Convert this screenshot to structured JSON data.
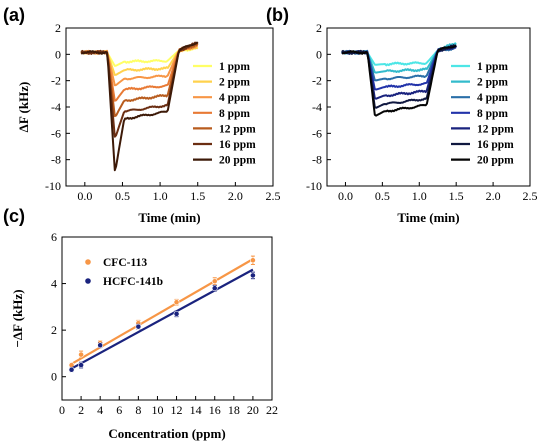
{
  "chart_data": [
    {
      "panel": "(a)",
      "type": "line",
      "xlabel": "Time (min)",
      "ylabel": "ΔF (kHz)",
      "xlim": [
        -0.25,
        2.5
      ],
      "ylim": [
        -10,
        2
      ],
      "xticks": [
        "0.0",
        "0.5",
        "1.0",
        "1.5",
        "2.0",
        "2.5"
      ],
      "yticks": [
        "2",
        "0",
        "-2",
        "-4",
        "-6",
        "-8",
        "-10"
      ],
      "legend_position": "right",
      "series": [
        {
          "name": "1 ppm",
          "color": "#ffff66",
          "drop": -0.6,
          "spike": -0.9
        },
        {
          "name": "2 ppm",
          "color": "#ffd24d",
          "drop": -1.3,
          "spike": -1.6
        },
        {
          "name": "4 ppm",
          "color": "#f79646",
          "drop": -2.0,
          "spike": -2.4
        },
        {
          "name": "8 ppm",
          "color": "#e87a35",
          "drop": -2.9,
          "spike": -3.6
        },
        {
          "name": "12 ppm",
          "color": "#b85c1e",
          "drop": -3.8,
          "spike": -4.8
        },
        {
          "name": "16 ppm",
          "color": "#6b2e12",
          "drop": -4.7,
          "spike": -6.4
        },
        {
          "name": "20 ppm",
          "color": "#3d1a08",
          "drop": -5.3,
          "spike": -9.0
        }
      ]
    },
    {
      "panel": "(b)",
      "type": "line",
      "xlabel": "Time (min)",
      "ylabel": "",
      "xlim": [
        -0.25,
        2.5
      ],
      "ylim": [
        -10,
        2
      ],
      "xticks": [
        "0.0",
        "0.5",
        "1.0",
        "1.5",
        "2.0",
        "2.5"
      ],
      "yticks": [
        "2",
        "0",
        "-2",
        "-4",
        "-6",
        "-8",
        "-10"
      ],
      "legend_position": "right",
      "series": [
        {
          "name": "1 ppm",
          "color": "#4de6e6",
          "drop": -0.8
        },
        {
          "name": "2 ppm",
          "color": "#33bbcc",
          "drop": -1.4
        },
        {
          "name": "4 ppm",
          "color": "#2a6fa8",
          "drop": -2.0
        },
        {
          "name": "8 ppm",
          "color": "#2233aa",
          "drop": -2.7
        },
        {
          "name": "12 ppm",
          "color": "#1a237e",
          "drop": -3.4
        },
        {
          "name": "16 ppm",
          "color": "#101840",
          "drop": -4.1
        },
        {
          "name": "20 ppm",
          "color": "#050505",
          "drop": -4.7
        }
      ]
    },
    {
      "panel": "(c)",
      "type": "scatter",
      "xlabel": "Concentration (ppm)",
      "ylabel": "−ΔF (kHz)",
      "xlim": [
        0,
        22
      ],
      "ylim": [
        -1,
        6
      ],
      "xticks": [
        "0",
        "2",
        "4",
        "6",
        "8",
        "10",
        "12",
        "14",
        "16",
        "18",
        "20",
        "22"
      ],
      "yticks": [
        "6",
        "4",
        "2",
        "0"
      ],
      "legend_position": "top-left",
      "series": [
        {
          "name": "CFC-113",
          "color": "#f79646",
          "x": [
            1,
            2,
            4,
            8,
            12,
            16,
            20
          ],
          "y": [
            0.5,
            0.95,
            1.45,
            2.3,
            3.2,
            4.1,
            5.0
          ],
          "err": [
            0.08,
            0.15,
            0.1,
            0.12,
            0.12,
            0.15,
            0.18
          ],
          "fit": [
            [
              1,
              0.55
            ],
            [
              20,
              5.05
            ]
          ]
        },
        {
          "name": "HCFC-141b",
          "color": "#1a237e",
          "x": [
            1,
            2,
            4,
            8,
            12,
            16,
            20
          ],
          "y": [
            0.3,
            0.5,
            1.35,
            2.15,
            2.7,
            3.8,
            4.35
          ],
          "err": [
            0.08,
            0.12,
            0.1,
            0.1,
            0.12,
            0.12,
            0.14
          ],
          "fit": [
            [
              1,
              0.35
            ],
            [
              20,
              4.6
            ]
          ]
        }
      ]
    }
  ]
}
